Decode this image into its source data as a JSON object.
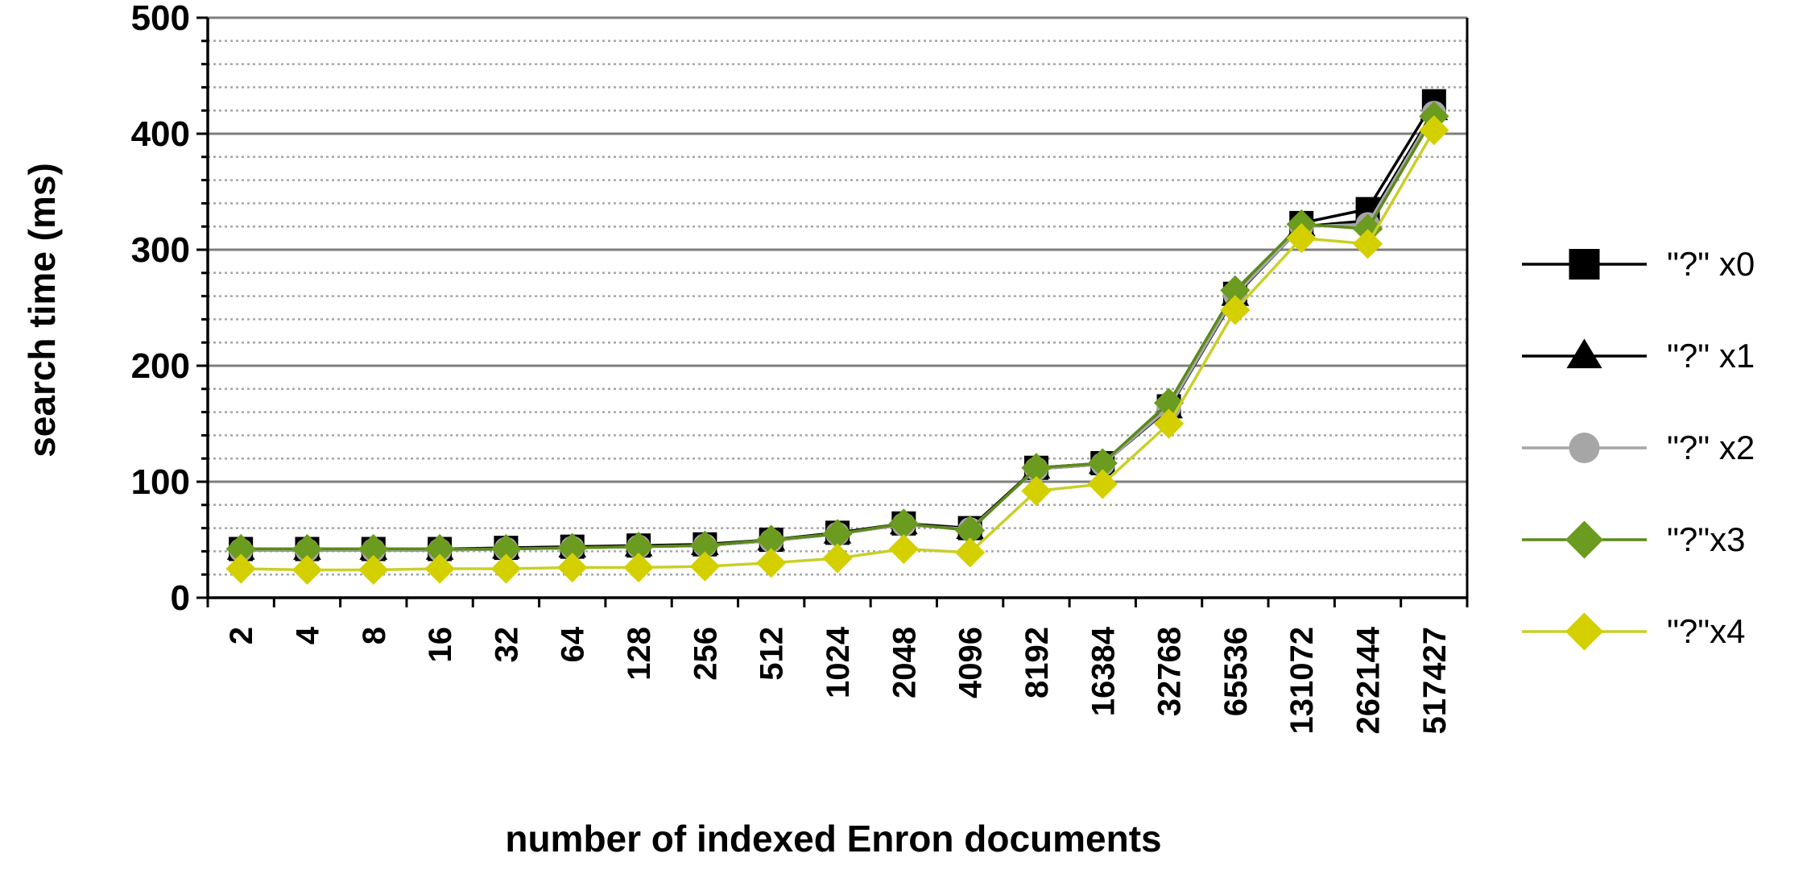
{
  "chart_data": {
    "type": "line",
    "title": "",
    "xlabel": "number of indexed Enron documents",
    "ylabel": "search time (ms)",
    "ylim": [
      0,
      500
    ],
    "y_major_ticks": [
      0,
      100,
      200,
      300,
      400,
      500
    ],
    "y_minor_step": 20,
    "grid": true,
    "legend_position": "right",
    "categories": [
      "2",
      "4",
      "8",
      "16",
      "32",
      "64",
      "128",
      "256",
      "512",
      "1024",
      "2048",
      "4096",
      "8192",
      "16384",
      "32768",
      "65536",
      "131072",
      "262144",
      "517427"
    ],
    "series": [
      {
        "name": "\"?\" x0",
        "marker": "square",
        "color": "#000000",
        "marker_color": "#000000",
        "values": [
          42,
          42,
          42,
          42,
          43,
          44,
          45,
          46,
          50,
          56,
          64,
          60,
          112,
          116,
          165,
          262,
          323,
          335,
          428
        ]
      },
      {
        "name": "\"?\" x1",
        "marker": "triangle",
        "color": "#000000",
        "marker_color": "#000000",
        "values": [
          41,
          41,
          41,
          41,
          42,
          43,
          44,
          45,
          49,
          55,
          63,
          59,
          111,
          115,
          163,
          260,
          320,
          325,
          420
        ]
      },
      {
        "name": "\"?\" x2",
        "marker": "circle",
        "color": "#a6a6a6",
        "marker_color": "#a6a6a6",
        "values": [
          41,
          41,
          41,
          41,
          42,
          43,
          44,
          45,
          49,
          55,
          63,
          59,
          111,
          115,
          164,
          261,
          320,
          322,
          418
        ]
      },
      {
        "name": "\"?\"x3",
        "marker": "diamond",
        "color": "#5a8a1a",
        "marker_color": "#6b9b1f",
        "values": [
          42,
          42,
          42,
          42,
          42,
          43,
          44,
          45,
          50,
          55,
          64,
          58,
          112,
          116,
          168,
          265,
          322,
          318,
          415
        ]
      },
      {
        "name": "\"?\"x4",
        "marker": "diamond",
        "color": "#c9cf2a",
        "marker_color": "#d4d000",
        "values": [
          25,
          24,
          24,
          25,
          25,
          26,
          26,
          27,
          30,
          34,
          42,
          39,
          92,
          98,
          150,
          248,
          310,
          305,
          403
        ]
      }
    ]
  }
}
